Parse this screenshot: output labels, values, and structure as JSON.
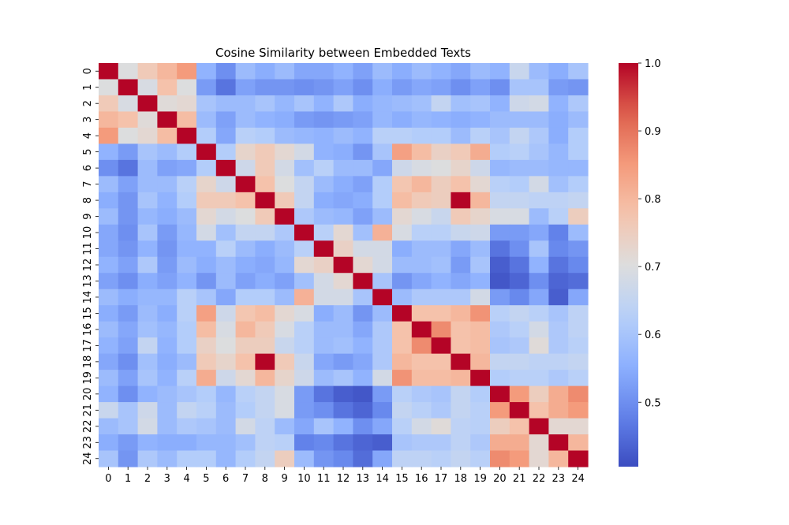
{
  "chart_data": {
    "type": "heatmap",
    "title": "Cosine Similarity between Embedded Texts",
    "xlabel": "",
    "ylabel": "",
    "labels": [
      "0",
      "1",
      "2",
      "3",
      "4",
      "5",
      "6",
      "7",
      "8",
      "9",
      "10",
      "11",
      "12",
      "13",
      "14",
      "15",
      "16",
      "17",
      "18",
      "19",
      "20",
      "21",
      "22",
      "23",
      "24"
    ],
    "colormap": "coolwarm",
    "vmin": 0.405,
    "vmax": 1.0,
    "colorbar_ticks": [
      0.5,
      0.6,
      0.7,
      0.8,
      0.9,
      1.0
    ],
    "colorbar_tick_labels": [
      "0.5",
      "0.6",
      "0.7",
      "0.8",
      "0.9",
      "1.0"
    ],
    "values": [
      [
        1.0,
        0.7,
        0.76,
        0.8,
        0.85,
        0.56,
        0.5,
        0.58,
        0.55,
        0.58,
        0.54,
        0.54,
        0.56,
        0.53,
        0.58,
        0.55,
        0.58,
        0.56,
        0.54,
        0.58,
        0.56,
        0.66,
        0.58,
        0.55,
        0.6
      ],
      [
        0.7,
        1.0,
        0.69,
        0.78,
        0.7,
        0.52,
        0.46,
        0.53,
        0.51,
        0.51,
        0.5,
        0.51,
        0.53,
        0.5,
        0.55,
        0.52,
        0.54,
        0.53,
        0.5,
        0.53,
        0.5,
        0.6,
        0.6,
        0.52,
        0.51
      ],
      [
        0.76,
        0.69,
        1.0,
        0.71,
        0.72,
        0.6,
        0.58,
        0.58,
        0.6,
        0.57,
        0.6,
        0.56,
        0.61,
        0.55,
        0.57,
        0.58,
        0.59,
        0.65,
        0.59,
        0.6,
        0.56,
        0.67,
        0.68,
        0.56,
        0.61
      ],
      [
        0.8,
        0.78,
        0.71,
        1.0,
        0.79,
        0.58,
        0.53,
        0.58,
        0.56,
        0.55,
        0.52,
        0.51,
        0.52,
        0.53,
        0.57,
        0.55,
        0.57,
        0.56,
        0.55,
        0.56,
        0.58,
        0.58,
        0.58,
        0.55,
        0.58
      ],
      [
        0.85,
        0.7,
        0.72,
        0.79,
        1.0,
        0.62,
        0.54,
        0.63,
        0.62,
        0.58,
        0.57,
        0.56,
        0.58,
        0.56,
        0.63,
        0.63,
        0.62,
        0.62,
        0.58,
        0.63,
        0.6,
        0.65,
        0.61,
        0.55,
        0.62
      ],
      [
        0.56,
        0.52,
        0.6,
        0.58,
        0.62,
        1.0,
        0.62,
        0.73,
        0.76,
        0.72,
        0.68,
        0.56,
        0.55,
        0.51,
        0.6,
        0.84,
        0.79,
        0.74,
        0.76,
        0.82,
        0.62,
        0.63,
        0.6,
        0.57,
        0.62
      ],
      [
        0.5,
        0.46,
        0.58,
        0.53,
        0.54,
        0.62,
        1.0,
        0.67,
        0.76,
        0.68,
        0.59,
        0.63,
        0.58,
        0.58,
        0.54,
        0.67,
        0.69,
        0.7,
        0.73,
        0.67,
        0.57,
        0.58,
        0.58,
        0.57,
        0.57
      ],
      [
        0.58,
        0.53,
        0.58,
        0.58,
        0.63,
        0.73,
        0.67,
        1.0,
        0.78,
        0.7,
        0.65,
        0.58,
        0.55,
        0.53,
        0.62,
        0.77,
        0.8,
        0.75,
        0.78,
        0.72,
        0.63,
        0.62,
        0.68,
        0.59,
        0.62
      ],
      [
        0.55,
        0.51,
        0.6,
        0.56,
        0.62,
        0.76,
        0.76,
        0.78,
        1.0,
        0.76,
        0.65,
        0.55,
        0.54,
        0.55,
        0.62,
        0.79,
        0.76,
        0.75,
        1.0,
        0.8,
        0.65,
        0.65,
        0.64,
        0.64,
        0.65
      ],
      [
        0.58,
        0.51,
        0.57,
        0.55,
        0.58,
        0.72,
        0.68,
        0.7,
        0.76,
        1.0,
        0.61,
        0.58,
        0.57,
        0.53,
        0.58,
        0.72,
        0.69,
        0.66,
        0.76,
        0.73,
        0.69,
        0.69,
        0.58,
        0.63,
        0.75
      ],
      [
        0.54,
        0.5,
        0.6,
        0.52,
        0.57,
        0.68,
        0.59,
        0.65,
        0.65,
        0.61,
        1.0,
        0.63,
        0.72,
        0.59,
        0.81,
        0.69,
        0.63,
        0.63,
        0.66,
        0.67,
        0.52,
        0.52,
        0.54,
        0.48,
        0.58
      ],
      [
        0.54,
        0.51,
        0.56,
        0.51,
        0.56,
        0.56,
        0.63,
        0.58,
        0.55,
        0.58,
        0.63,
        1.0,
        0.74,
        0.68,
        0.68,
        0.55,
        0.58,
        0.58,
        0.54,
        0.58,
        0.46,
        0.5,
        0.6,
        0.49,
        0.51
      ],
      [
        0.56,
        0.53,
        0.61,
        0.52,
        0.58,
        0.55,
        0.58,
        0.55,
        0.54,
        0.57,
        0.72,
        0.74,
        1.0,
        0.72,
        0.68,
        0.58,
        0.58,
        0.59,
        0.52,
        0.6,
        0.43,
        0.46,
        0.56,
        0.46,
        0.49
      ],
      [
        0.53,
        0.5,
        0.55,
        0.53,
        0.56,
        0.51,
        0.58,
        0.53,
        0.55,
        0.53,
        0.59,
        0.68,
        0.72,
        1.0,
        0.6,
        0.51,
        0.54,
        0.56,
        0.54,
        0.56,
        0.42,
        0.44,
        0.5,
        0.44,
        0.45
      ],
      [
        0.58,
        0.55,
        0.57,
        0.57,
        0.63,
        0.6,
        0.54,
        0.62,
        0.62,
        0.58,
        0.81,
        0.68,
        0.68,
        0.6,
        1.0,
        0.58,
        0.61,
        0.61,
        0.61,
        0.68,
        0.52,
        0.49,
        0.54,
        0.43,
        0.54
      ],
      [
        0.55,
        0.52,
        0.58,
        0.55,
        0.63,
        0.84,
        0.67,
        0.77,
        0.79,
        0.72,
        0.69,
        0.55,
        0.58,
        0.51,
        0.58,
        1.0,
        0.78,
        0.78,
        0.8,
        0.86,
        0.63,
        0.65,
        0.63,
        0.6,
        0.64
      ],
      [
        0.58,
        0.54,
        0.59,
        0.57,
        0.62,
        0.79,
        0.69,
        0.8,
        0.76,
        0.69,
        0.63,
        0.58,
        0.58,
        0.54,
        0.61,
        0.78,
        1.0,
        0.87,
        0.78,
        0.79,
        0.61,
        0.63,
        0.68,
        0.61,
        0.64
      ],
      [
        0.56,
        0.53,
        0.65,
        0.56,
        0.62,
        0.74,
        0.7,
        0.75,
        0.75,
        0.66,
        0.63,
        0.58,
        0.59,
        0.56,
        0.61,
        0.78,
        0.87,
        1.0,
        0.78,
        0.79,
        0.6,
        0.61,
        0.71,
        0.61,
        0.63
      ],
      [
        0.54,
        0.5,
        0.59,
        0.55,
        0.58,
        0.76,
        0.73,
        0.78,
        1.0,
        0.76,
        0.66,
        0.54,
        0.52,
        0.54,
        0.61,
        0.8,
        0.78,
        0.78,
        1.0,
        0.8,
        0.65,
        0.65,
        0.64,
        0.64,
        0.65
      ],
      [
        0.58,
        0.53,
        0.6,
        0.56,
        0.63,
        0.82,
        0.67,
        0.72,
        0.8,
        0.73,
        0.67,
        0.58,
        0.6,
        0.56,
        0.68,
        0.86,
        0.79,
        0.79,
        0.8,
        1.0,
        0.62,
        0.63,
        0.63,
        0.61,
        0.63
      ],
      [
        0.56,
        0.5,
        0.56,
        0.58,
        0.6,
        0.62,
        0.57,
        0.63,
        0.65,
        0.69,
        0.52,
        0.46,
        0.43,
        0.42,
        0.52,
        0.63,
        0.61,
        0.6,
        0.65,
        0.62,
        1.0,
        0.85,
        0.75,
        0.82,
        0.87
      ],
      [
        0.66,
        0.6,
        0.67,
        0.58,
        0.65,
        0.63,
        0.58,
        0.62,
        0.65,
        0.69,
        0.52,
        0.5,
        0.46,
        0.44,
        0.49,
        0.65,
        0.63,
        0.61,
        0.65,
        0.63,
        0.85,
        1.0,
        0.78,
        0.82,
        0.85
      ],
      [
        0.58,
        0.6,
        0.68,
        0.58,
        0.61,
        0.6,
        0.58,
        0.68,
        0.64,
        0.58,
        0.54,
        0.6,
        0.56,
        0.5,
        0.54,
        0.63,
        0.68,
        0.71,
        0.64,
        0.63,
        0.75,
        0.78,
        1.0,
        0.72,
        0.72
      ],
      [
        0.55,
        0.52,
        0.56,
        0.55,
        0.55,
        0.57,
        0.57,
        0.59,
        0.64,
        0.63,
        0.48,
        0.49,
        0.46,
        0.44,
        0.43,
        0.6,
        0.61,
        0.61,
        0.64,
        0.61,
        0.82,
        0.82,
        0.72,
        1.0,
        0.8
      ],
      [
        0.6,
        0.51,
        0.61,
        0.58,
        0.62,
        0.62,
        0.57,
        0.62,
        0.65,
        0.75,
        0.58,
        0.51,
        0.49,
        0.45,
        0.54,
        0.64,
        0.64,
        0.63,
        0.65,
        0.63,
        0.87,
        0.85,
        0.72,
        0.8,
        1.0
      ]
    ]
  }
}
